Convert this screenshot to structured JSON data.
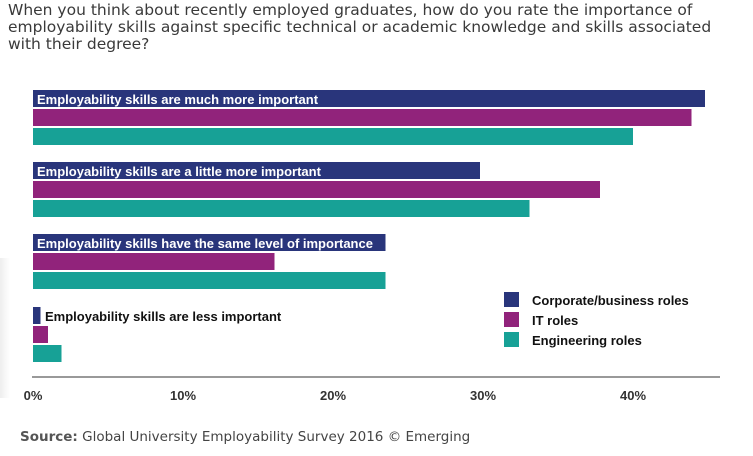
{
  "title": "When you think about recently employed graduates, how do you rate the importance of employability skills against specific technical or academic knowledge and skills associated with their degree?",
  "source": {
    "label": "Source:",
    "text": "Global University Employability Survey 2016 © Emerging"
  },
  "chart_data": {
    "type": "bar",
    "orientation": "horizontal",
    "categories": [
      "Employability skills are much more important",
      "Employability skills are a little more important",
      "Employability skills have the same level of importance",
      "Employability skills are less important"
    ],
    "series": [
      {
        "name": "Corporate/business roles",
        "color": "#29357b",
        "values": [
          44.8,
          29.8,
          23.5,
          0.5
        ]
      },
      {
        "name": "IT roles",
        "color": "#91237b",
        "values": [
          43.9,
          37.8,
          16.1,
          1.0
        ]
      },
      {
        "name": "Engineering roles",
        "color": "#17a196",
        "values": [
          40.0,
          33.1,
          23.5,
          1.9
        ]
      }
    ],
    "xticks": [
      "0%",
      "10%",
      "20%",
      "30%",
      "40%"
    ],
    "xlim": [
      0,
      46
    ],
    "legend_position": "bottom-right",
    "grid": false
  }
}
